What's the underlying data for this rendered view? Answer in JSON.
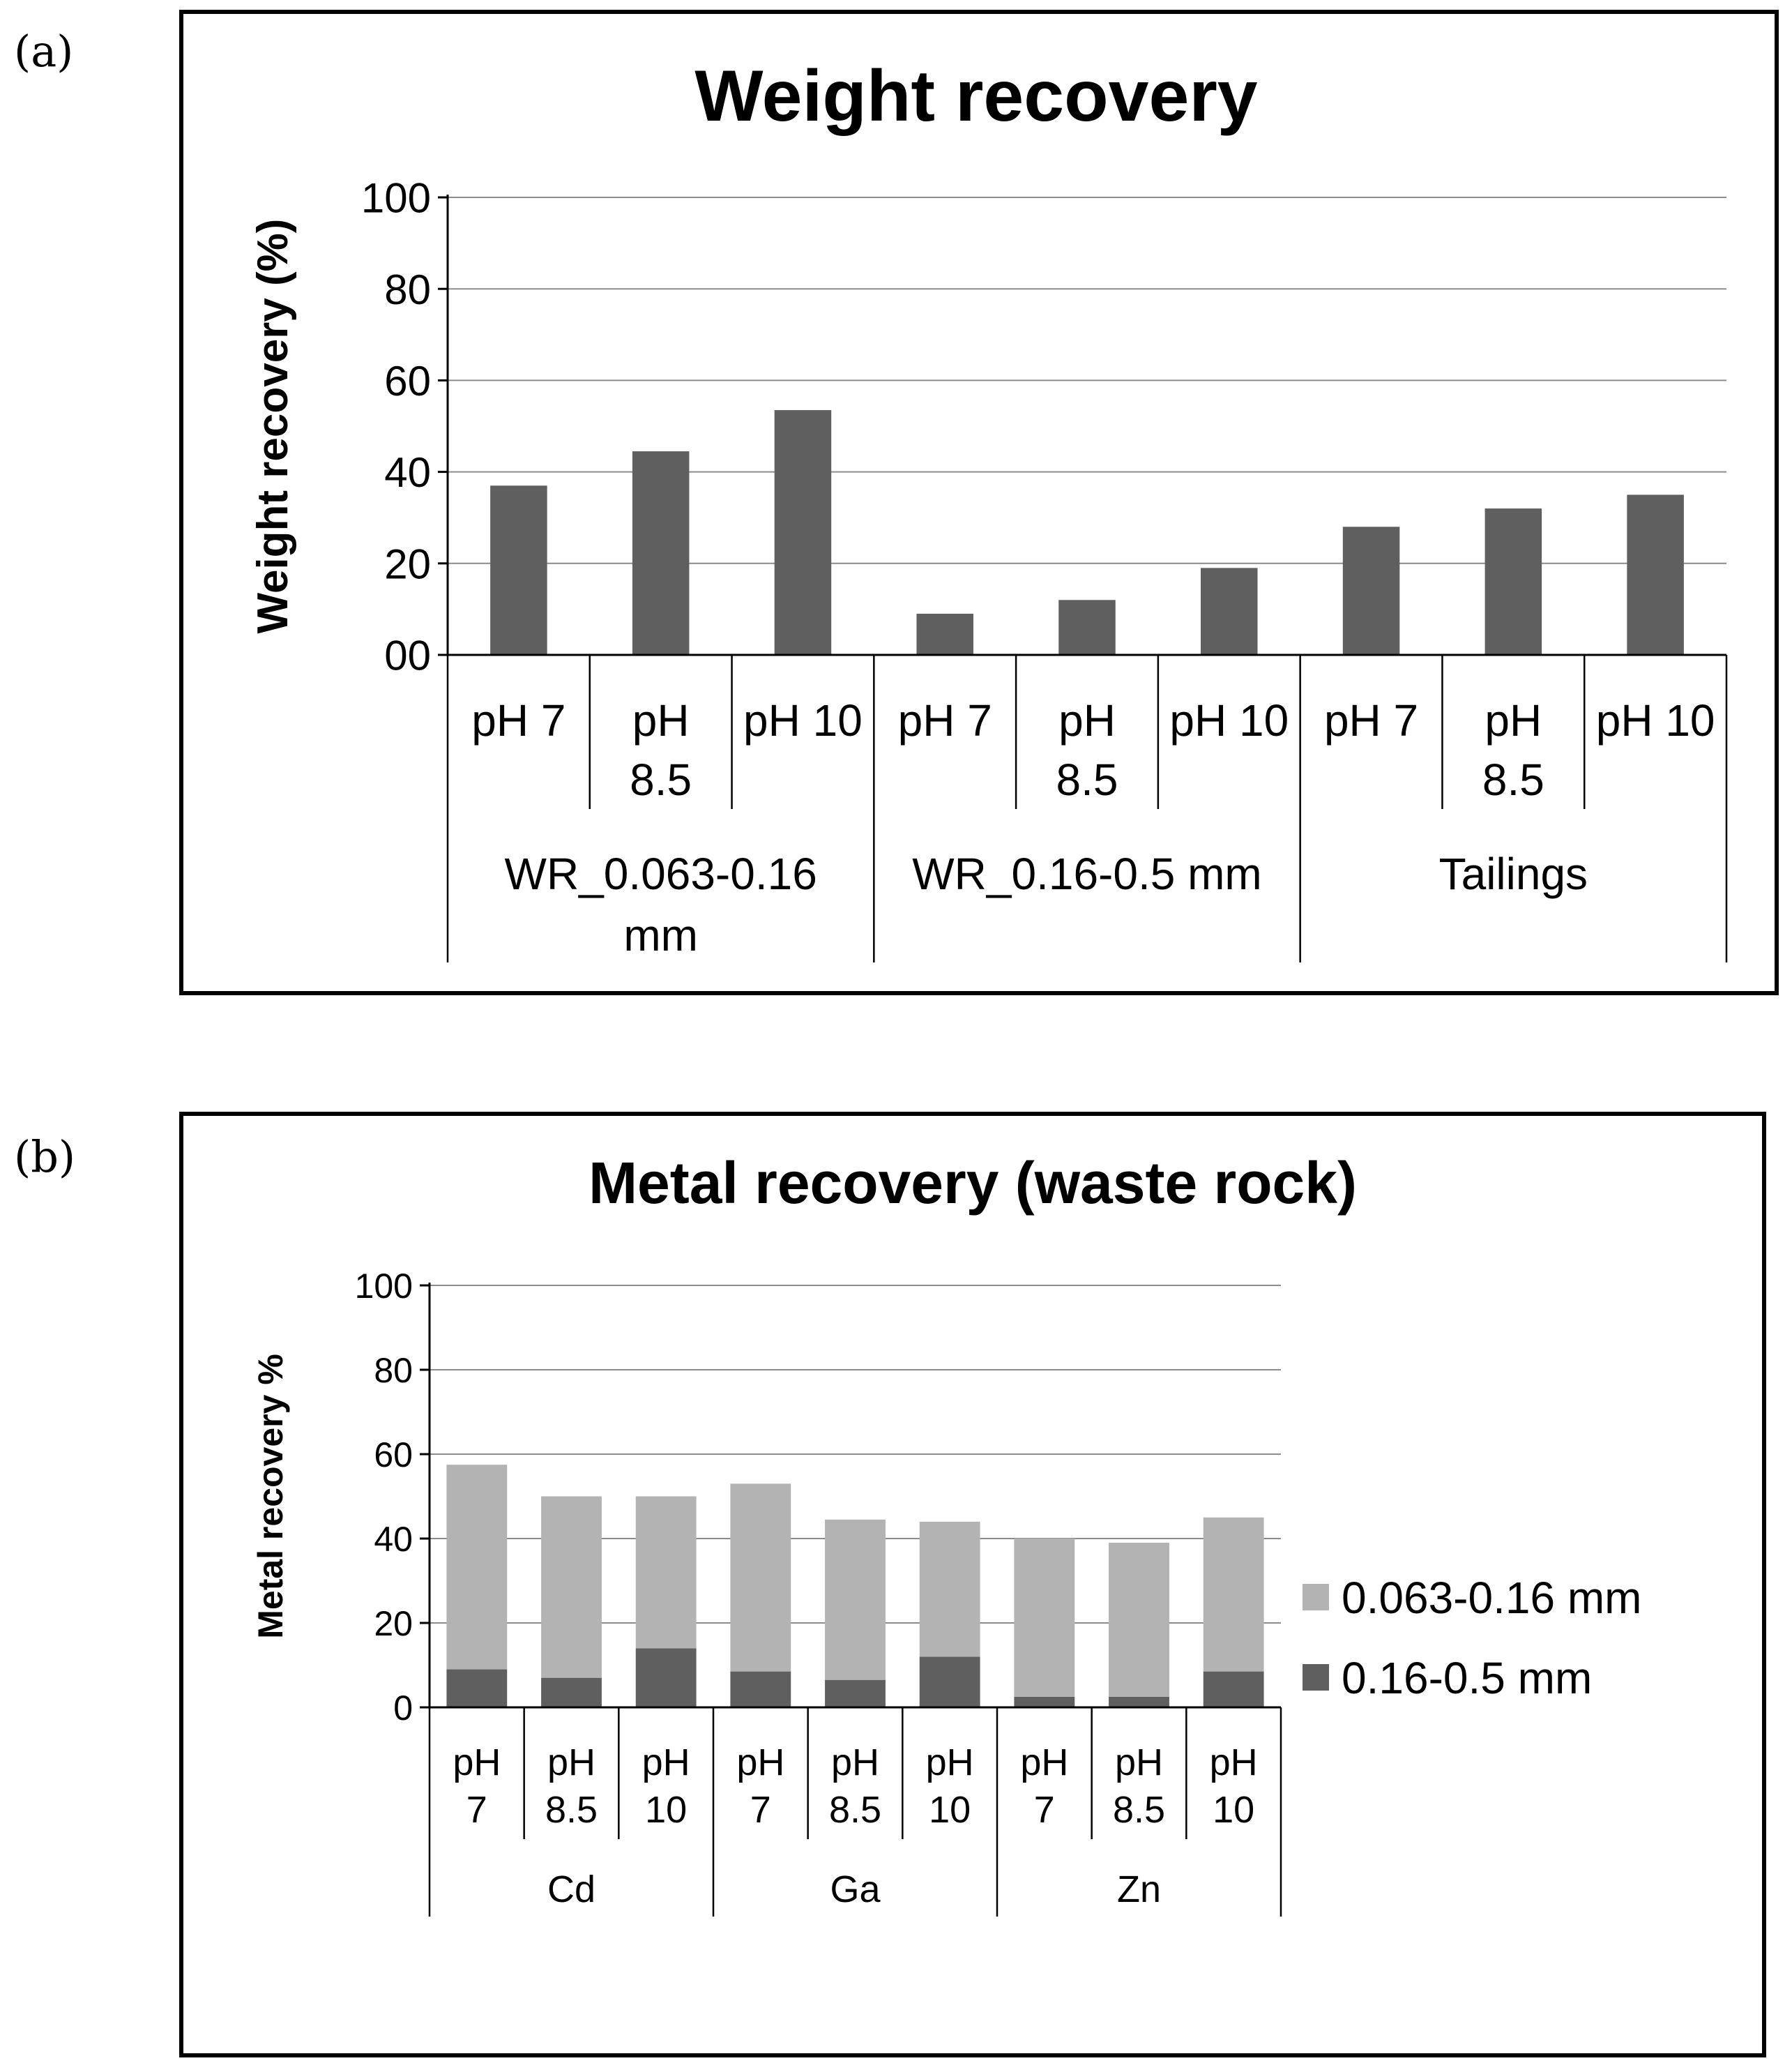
{
  "panels": {
    "a_label": "(a)",
    "b_label": "(b)"
  },
  "chart_data": [
    {
      "type": "bar",
      "title": "Weight recovery",
      "xlabel": "",
      "ylabel": "Weight recovery (%)",
      "ylim": [
        0,
        100
      ],
      "yticks": [
        "00",
        "20",
        "40",
        "60",
        "80",
        "100"
      ],
      "grid": true,
      "groups": [
        {
          "label": "WR_0.063-0.16 mm",
          "label_lines": [
            "WR_0.063-0.16",
            "mm"
          ]
        },
        {
          "label": "WR_0.16-0.5 mm",
          "label_lines": [
            "WR_0.16-0.5 mm"
          ]
        },
        {
          "label": "Tailings",
          "label_lines": [
            "Tailings"
          ]
        }
      ],
      "categories": [
        {
          "label": "pH 7",
          "lines": [
            "pH 7"
          ]
        },
        {
          "label": "pH 8.5",
          "lines": [
            "pH",
            "8.5"
          ]
        },
        {
          "label": "pH 10",
          "lines": [
            "pH 10"
          ]
        },
        {
          "label": "pH 7",
          "lines": [
            "pH 7"
          ]
        },
        {
          "label": "pH 8.5",
          "lines": [
            "pH",
            "8.5"
          ]
        },
        {
          "label": "pH 10",
          "lines": [
            "pH 10"
          ]
        },
        {
          "label": "pH 7",
          "lines": [
            "pH 7"
          ]
        },
        {
          "label": "pH 8.5",
          "lines": [
            "pH",
            "8.5"
          ]
        },
        {
          "label": "pH 10",
          "lines": [
            "pH 10"
          ]
        }
      ],
      "values": [
        37,
        44.5,
        53.5,
        9,
        12,
        19,
        28,
        32,
        35
      ],
      "bar_color": "#5f5f5f"
    },
    {
      "type": "bar",
      "stacked": true,
      "title": "Metal recovery (waste rock)",
      "xlabel": "",
      "ylabel": "Metal recovery %",
      "ylim": [
        0,
        100
      ],
      "yticks": [
        "0",
        "20",
        "40",
        "60",
        "80",
        "100"
      ],
      "grid": true,
      "legend_position": "right",
      "groups": [
        {
          "label": "Cd"
        },
        {
          "label": "Ga"
        },
        {
          "label": "Zn"
        }
      ],
      "categories": [
        {
          "label": "pH 7",
          "lines": [
            "pH",
            "7"
          ]
        },
        {
          "label": "pH 8.5",
          "lines": [
            "pH",
            "8.5"
          ]
        },
        {
          "label": "pH 10",
          "lines": [
            "pH",
            "10"
          ]
        },
        {
          "label": "pH 7",
          "lines": [
            "pH",
            "7"
          ]
        },
        {
          "label": "pH 8.5",
          "lines": [
            "pH",
            "8.5"
          ]
        },
        {
          "label": "pH 10",
          "lines": [
            "pH",
            "10"
          ]
        },
        {
          "label": "pH 7",
          "lines": [
            "pH",
            "7"
          ]
        },
        {
          "label": "pH 8.5",
          "lines": [
            "pH",
            "8.5"
          ]
        },
        {
          "label": "pH 10",
          "lines": [
            "pH",
            "10"
          ]
        }
      ],
      "series": [
        {
          "name": "0.16-0.5 mm",
          "color": "#5f5f5f",
          "values": [
            9,
            7,
            14,
            8.5,
            6.5,
            12,
            2.5,
            2.5,
            8.5
          ]
        },
        {
          "name": "0.063-0.16 mm",
          "color": "#b3b3b3",
          "values": [
            48.5,
            43,
            36,
            44.5,
            38,
            32,
            37.5,
            36.5,
            36.5
          ]
        }
      ],
      "legend_order": [
        "0.063-0.16 mm",
        "0.16-0.5 mm"
      ]
    }
  ]
}
